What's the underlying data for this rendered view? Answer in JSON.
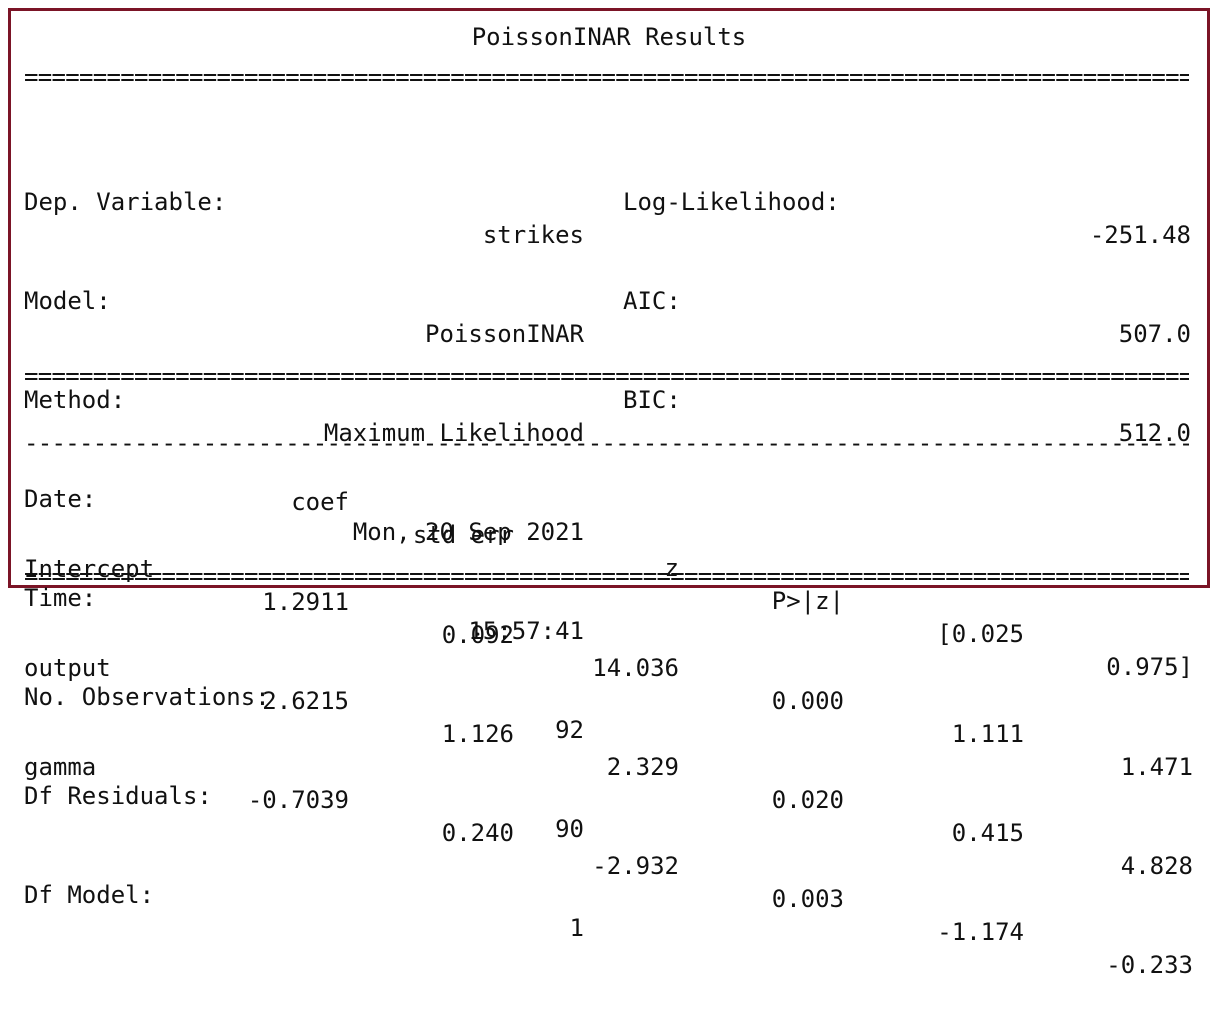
{
  "title": "PoissonINAR Results",
  "rule_double": "=======================================================================================================================================",
  "rule_single": "---------------------------------------------------------------------------------------------------------------------------------------",
  "left_info": [
    {
      "label": "Dep. Variable:",
      "value": "strikes"
    },
    {
      "label": "Model:",
      "value": "PoissonINAR"
    },
    {
      "label": "Method:",
      "value": "Maximum Likelihood"
    },
    {
      "label": "Date:",
      "value": "Mon, 20 Sep 2021"
    },
    {
      "label": "Time:",
      "value": "15:57:41"
    },
    {
      "label": "No. Observations:",
      "value": "92"
    },
    {
      "label": "Df Residuals:",
      "value": "90"
    },
    {
      "label": "Df Model:",
      "value": "1"
    }
  ],
  "right_info": [
    {
      "label": "Log-Likelihood:",
      "value": "-251.48"
    },
    {
      "label": "AIC:",
      "value": "507.0"
    },
    {
      "label": "BIC:",
      "value": "512.0"
    }
  ],
  "columns": [
    "",
    "coef",
    "std err",
    "z",
    "P>|z|",
    "[0.025",
    "0.975]"
  ],
  "rows": [
    [
      "Intercept",
      "1.2911",
      "0.092",
      "14.036",
      "0.000",
      "1.111",
      "1.471"
    ],
    [
      "output",
      "2.6215",
      "1.126",
      "2.329",
      "0.020",
      "0.415",
      "4.828"
    ],
    [
      "gamma",
      "-0.7039",
      "0.240",
      "-2.932",
      "0.003",
      "-1.174",
      "-0.233"
    ]
  ]
}
